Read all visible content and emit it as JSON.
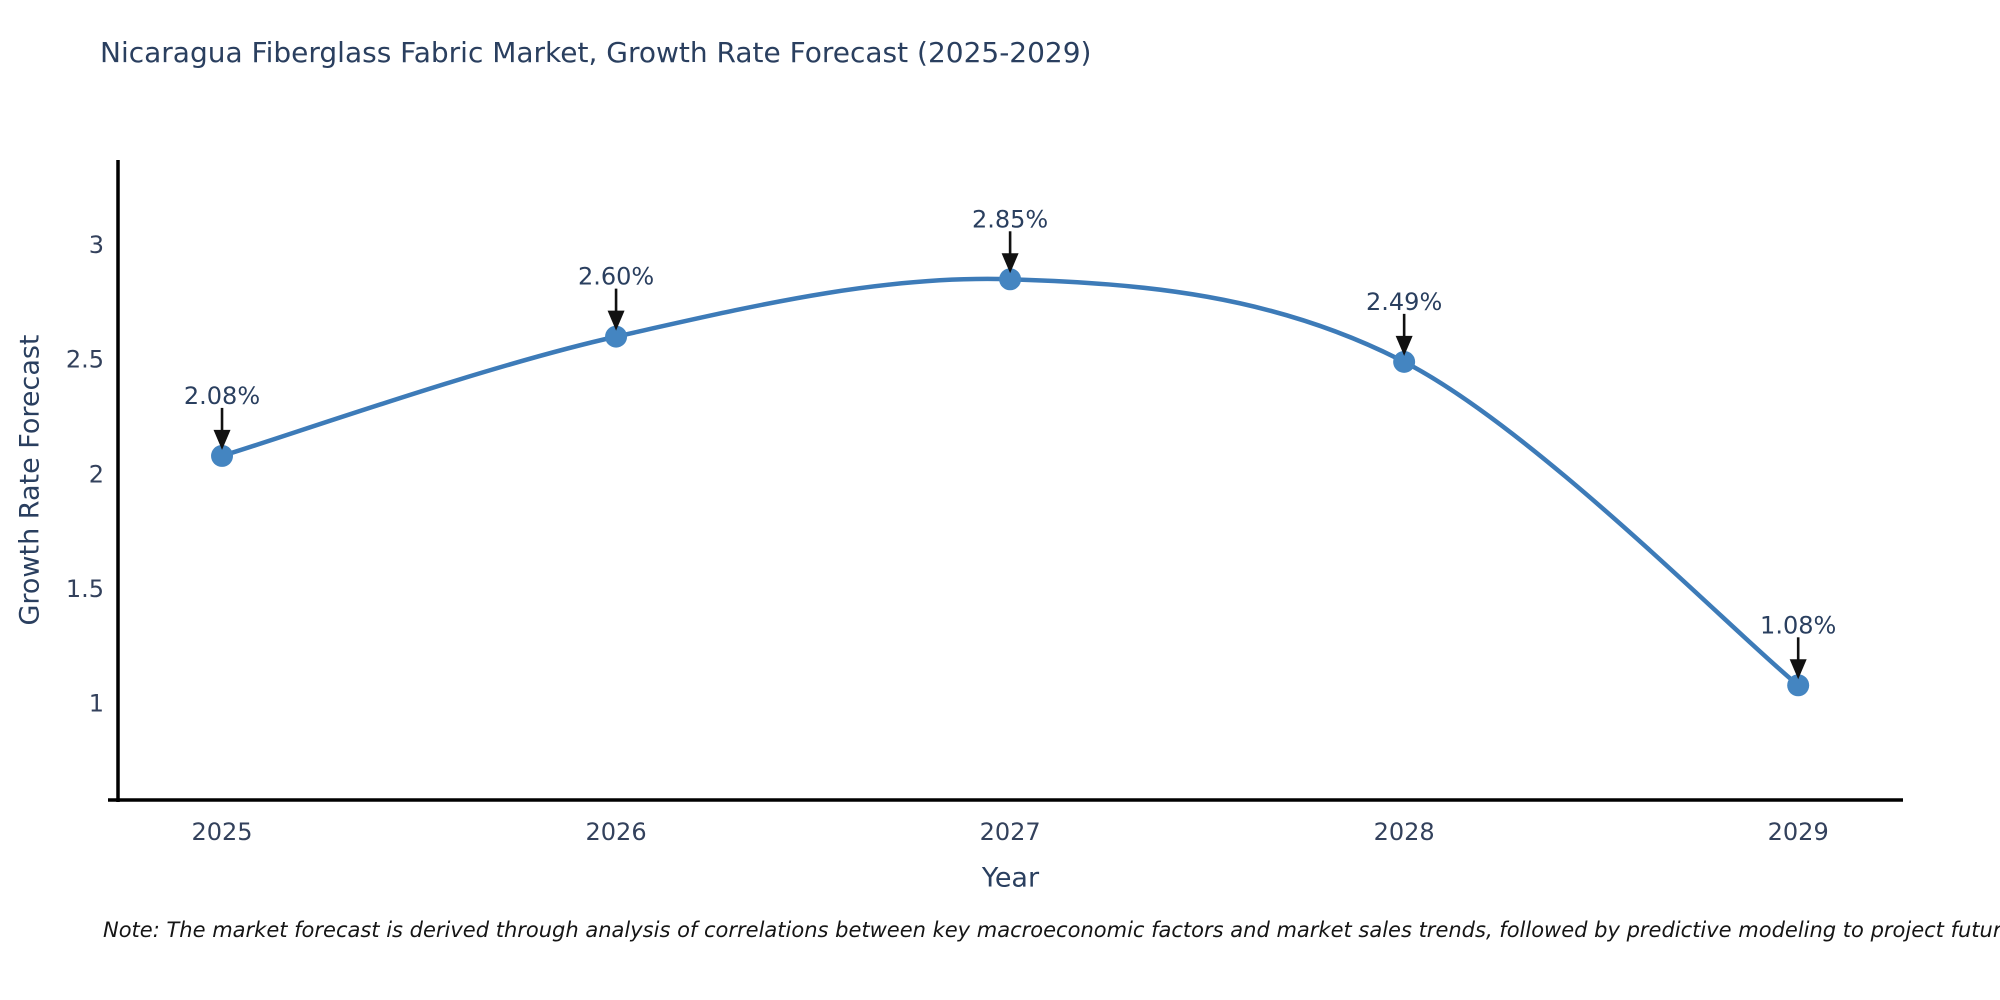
{
  "page": {
    "title": "Nicaragua Fiberglass Fabric Market, Growth Rate Forecast (2025-2029)",
    "note": "Note: The market forecast is derived through analysis of correlations between key macroeconomic factors and market sales trends, followed by predictive modeling to project future sales"
  },
  "chart_data": {
    "type": "line",
    "title": "Nicaragua Fiberglass Fabric Market, Growth Rate Forecast (2025-2029)",
    "x": [
      2025,
      2026,
      2027,
      2028,
      2029
    ],
    "series": [
      {
        "name": "Growth Rate Forecast",
        "values": [
          2.08,
          2.6,
          2.85,
          2.49,
          1.08
        ]
      }
    ],
    "point_labels": [
      "2.08%",
      "2.60%",
      "2.85%",
      "2.49%",
      "1.08%"
    ],
    "xlabel": "Year",
    "ylabel": "Growth Rate Forecast",
    "xticks": [
      "2025",
      "2026",
      "2027",
      "2028",
      "2029"
    ],
    "yticks": [
      1,
      1.5,
      2,
      2.5,
      3
    ],
    "xlim": [
      2024.736,
      2029.266
    ],
    "ylim": [
      0.58,
      3.37
    ],
    "grid": false,
    "legend": false,
    "line_shape": "spline",
    "annotation_style": "value-label-with-down-arrow",
    "colors": {
      "line": "#3d7bb8",
      "marker": "#4485c1",
      "axis": "#000000",
      "text": "#2a3f5f",
      "tick_text": "#33415c",
      "arrow": "#111111"
    }
  }
}
